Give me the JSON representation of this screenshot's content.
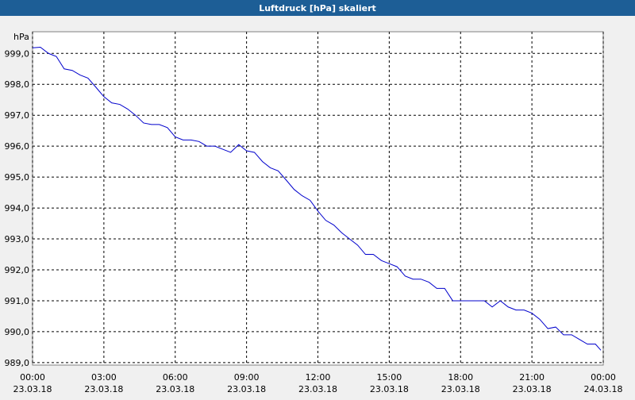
{
  "chart_data": {
    "type": "line",
    "title": "Luftdruck [hPa] skaliert",
    "y_unit": "hPa",
    "x": [
      0,
      0.33,
      0.67,
      1,
      1.33,
      1.67,
      2,
      2.33,
      2.67,
      3,
      3.33,
      3.67,
      4,
      4.33,
      4.67,
      5,
      5.33,
      5.67,
      6,
      6.33,
      6.67,
      7,
      7.33,
      7.67,
      8,
      8.33,
      8.67,
      9,
      9.33,
      9.67,
      10,
      10.33,
      10.67,
      11,
      11.33,
      11.67,
      12,
      12.33,
      12.67,
      13,
      13.33,
      13.67,
      14,
      14.33,
      14.67,
      15,
      15.33,
      15.67,
      16,
      16.33,
      16.67,
      17,
      17.33,
      17.67,
      18,
      18.33,
      18.67,
      19,
      19.33,
      19.67,
      20,
      20.33,
      20.67,
      21,
      21.33,
      21.67,
      22,
      22.33,
      22.67,
      23,
      23.33,
      23.67,
      23.9
    ],
    "series": [
      {
        "name": "Luftdruck",
        "color": "#0000cc",
        "values": [
          999.18,
          999.2,
          999.0,
          998.9,
          998.5,
          998.45,
          998.3,
          998.2,
          997.9,
          997.6,
          997.4,
          997.35,
          997.2,
          997.0,
          996.75,
          996.7,
          996.7,
          996.6,
          996.3,
          996.2,
          996.2,
          996.15,
          996.0,
          996.0,
          995.9,
          995.8,
          996.05,
          995.85,
          995.8,
          995.5,
          995.3,
          995.2,
          994.9,
          994.6,
          994.4,
          994.25,
          993.9,
          993.6,
          993.45,
          993.2,
          993.0,
          992.8,
          992.5,
          992.5,
          992.3,
          992.2,
          992.1,
          991.8,
          991.7,
          991.7,
          991.6,
          991.4,
          991.4,
          991.0,
          991.0,
          991.0,
          991.0,
          991.0,
          990.8,
          991.0,
          990.8,
          990.7,
          990.7,
          990.6,
          990.4,
          990.1,
          990.15,
          989.9,
          989.9,
          989.75,
          989.6,
          989.6,
          989.4
        ]
      }
    ],
    "xlim": [
      0,
      24
    ],
    "xticks": [
      {
        "value": 0,
        "label": "00:00"
      },
      {
        "value": 3,
        "label": "03:00"
      },
      {
        "value": 6,
        "label": "06:00"
      },
      {
        "value": 9,
        "label": "09:00"
      },
      {
        "value": 12,
        "label": "12:00"
      },
      {
        "value": 15,
        "label": "15:00"
      },
      {
        "value": 18,
        "label": "18:00"
      },
      {
        "value": 21,
        "label": "21:00"
      },
      {
        "value": 24,
        "label": "00:00"
      }
    ],
    "xtick_dates": [
      "23.03.18",
      "23.03.18",
      "23.03.18",
      "23.03.18",
      "23.03.18",
      "23.03.18",
      "23.03.18",
      "23.03.18",
      "24.03.18"
    ],
    "ylim": [
      988.92,
      999.7
    ],
    "yticks": [
      {
        "value": 989,
        "label": "989,0"
      },
      {
        "value": 990,
        "label": "990,0"
      },
      {
        "value": 991,
        "label": "991,0"
      },
      {
        "value": 992,
        "label": "992,0"
      },
      {
        "value": 993,
        "label": "993,0"
      },
      {
        "value": 994,
        "label": "994,0"
      },
      {
        "value": 995,
        "label": "995,0"
      },
      {
        "value": 996,
        "label": "996,0"
      },
      {
        "value": 997,
        "label": "997,0"
      },
      {
        "value": 998,
        "label": "998,0"
      },
      {
        "value": 999,
        "label": "999,0"
      }
    ],
    "grid": true
  }
}
